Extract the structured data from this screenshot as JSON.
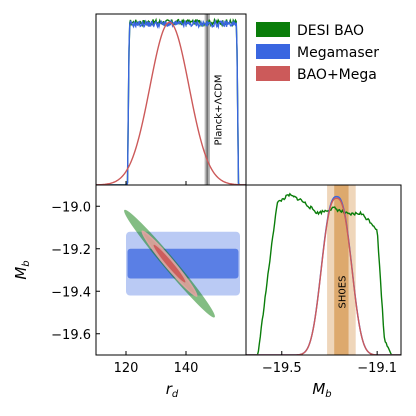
{
  "chart_data": {
    "type": "corner-plot",
    "parameters": [
      "r_d",
      "M_b"
    ],
    "colors": {
      "DESI BAO": "#0a7d0a",
      "Megamaser": "#3a66e0",
      "BAO+Mega": "#cc5a5a",
      "planck_band": "#7f7f7f",
      "shoes_band": "#d08a3a"
    },
    "legend": {
      "position": "top-right",
      "entries": [
        "DESI BAO",
        "Megamaser",
        "BAO+Mega"
      ]
    },
    "axes": {
      "rd": {
        "label_main": "r",
        "label_sub": "d",
        "range": [
          110,
          160
        ],
        "ticks": [
          120,
          140
        ],
        "tick_labels": [
          "120",
          "140"
        ]
      },
      "Mb": {
        "label_main": "M",
        "label_sub": "b",
        "range": [
          -19.7,
          -18.9
        ],
        "ticks": [
          -19.0,
          -19.2,
          -19.4,
          -19.6
        ],
        "tick_labels": [
          "−19.0",
          "−19.2",
          "−19.4",
          "−19.6"
        ]
      },
      "Mb_x": {
        "range": [
          -19.65,
          -19.0
        ],
        "ticks": [
          -19.5,
          -19.1
        ],
        "tick_labels": [
          "−19.5",
          "−19.1"
        ]
      }
    },
    "rd_posterior": {
      "desi": {
        "flat_from": 120.5,
        "flat_to": 157.5,
        "height": 0.98
      },
      "mega": {
        "flat_from": 120.5,
        "flat_to": 157.5,
        "height": 0.97
      },
      "combined": {
        "mean": 134.5,
        "sigma": 6.5,
        "height": 0.98
      }
    },
    "Mb_posterior": {
      "desi": {
        "x": [
          -19.6,
          -19.52,
          -19.47,
          -19.42,
          -19.35,
          -19.28,
          -19.22,
          -19.17,
          -19.13,
          -19.1,
          -19.07,
          -19.04
        ],
        "y": [
          0.0,
          0.92,
          0.97,
          0.94,
          0.86,
          0.89,
          0.85,
          0.86,
          0.81,
          0.76,
          0.1,
          0.0
        ]
      },
      "mega": {
        "mean": -19.27,
        "sigma": 0.06,
        "height": 0.96
      },
      "combined": {
        "mean": -19.27,
        "sigma": 0.06,
        "height": 0.95
      }
    },
    "joint": {
      "desi": {
        "center": [
          134.5,
          -19.27
        ],
        "rd_sigma": 6.5,
        "slope": -0.0168,
        "perp_sigma": 0.012
      },
      "mega": {
        "rd_range": [
          120,
          158
        ],
        "Mb_inner": [
          -19.34,
          -19.2
        ],
        "Mb_outer": [
          -19.42,
          -19.12
        ]
      },
      "combined": {
        "center": [
          134.5,
          -19.27
        ],
        "rd_sigma": 4.2,
        "slope": -0.0168,
        "perp_sigma": 0.011
      }
    },
    "bands": {
      "planck": {
        "label": "Planck+ΛCDM",
        "value": 147.1,
        "sigma": 0.3
      },
      "shoes": {
        "label": "SH0ES",
        "value": -19.25,
        "sigma_inner": 0.03,
        "sigma_outer": 0.06
      }
    }
  }
}
